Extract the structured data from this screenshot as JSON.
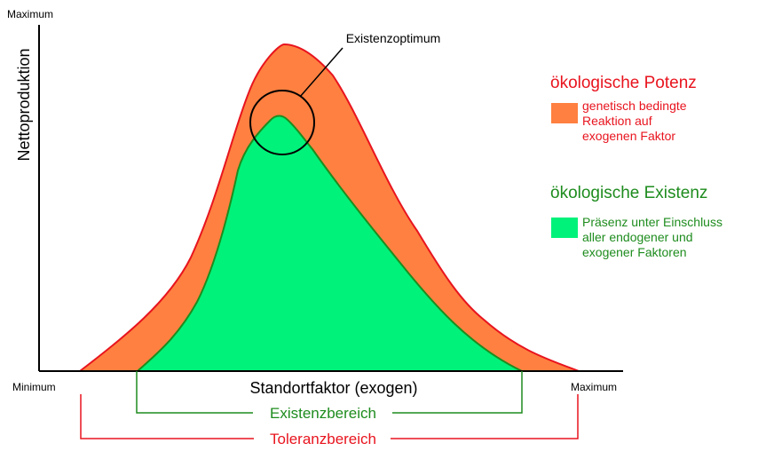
{
  "axes": {
    "y_max": "Maximum",
    "y_label": "Nettoproduktion",
    "x_min": "Minimum",
    "x_max": "Maximum",
    "x_label": "Standortfaktor (exogen)"
  },
  "annotation": {
    "optimum": "Existenzoptimum"
  },
  "ranges": {
    "existence": "Existenzbereich",
    "tolerance": "Toleranzbereich"
  },
  "legend": {
    "potenz": {
      "title": "ökologische Potenz",
      "lines": [
        "genetisch bedingte",
        "Reaktion auf",
        "exogenen Faktor"
      ]
    },
    "existenz": {
      "title": "ökologische Existenz",
      "lines": [
        "Präsenz unter Einschluss",
        "aller endogener und",
        "exogener Faktoren"
      ]
    }
  },
  "colors": {
    "potenz_fill": "#FF8040",
    "potenz_stroke": "#E8141E",
    "existenz_fill": "#00F27A",
    "existenz_stroke": "#1E8C1E",
    "red_text": "#E8141E",
    "green_text": "#1E8C1E",
    "axis": "#000000"
  }
}
